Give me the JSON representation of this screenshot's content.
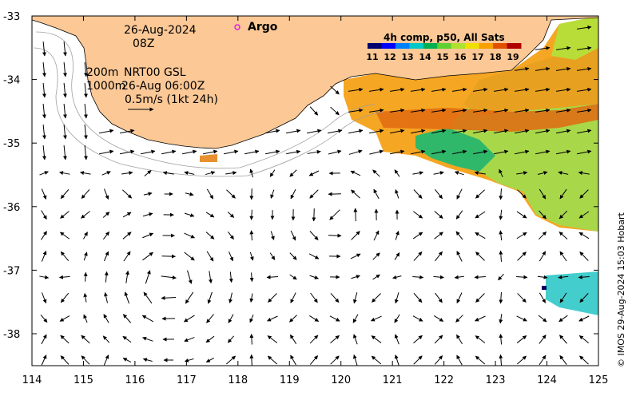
{
  "map": {
    "date_line1": "26-Aug-2024",
    "date_line2": "08Z",
    "depth_200": "200m",
    "depth_1000": "1000m",
    "source": "NRT00 GSL",
    "source_time": "26-Aug 06:00Z",
    "scale_label": "0.5m/s (1kt 24h)",
    "argo_label": "Argo",
    "colorbar_title": "4h comp, p50, All Sats",
    "colorbar_ticks": [
      "11",
      "12",
      "13",
      "14",
      "15",
      "16",
      "17",
      "18",
      "19"
    ],
    "credit": "© IMOS 29-Aug-2024 15:03 Hobart",
    "x_ticks": [
      "114",
      "115",
      "116",
      "117",
      "118",
      "119",
      "120",
      "121",
      "122",
      "123",
      "124",
      "125"
    ],
    "y_ticks": [
      "-33",
      "-34",
      "-35",
      "-36",
      "-37",
      "-38"
    ]
  },
  "colors": {
    "land": "#fbc896",
    "frame": "#000000",
    "argo": "#e020e0",
    "colormap": [
      "#00006e",
      "#0000ff",
      "#0080ff",
      "#00c8c8",
      "#00b050",
      "#60d030",
      "#b0e030",
      "#f0e000",
      "#f8a000",
      "#e05000",
      "#b00000"
    ]
  }
}
